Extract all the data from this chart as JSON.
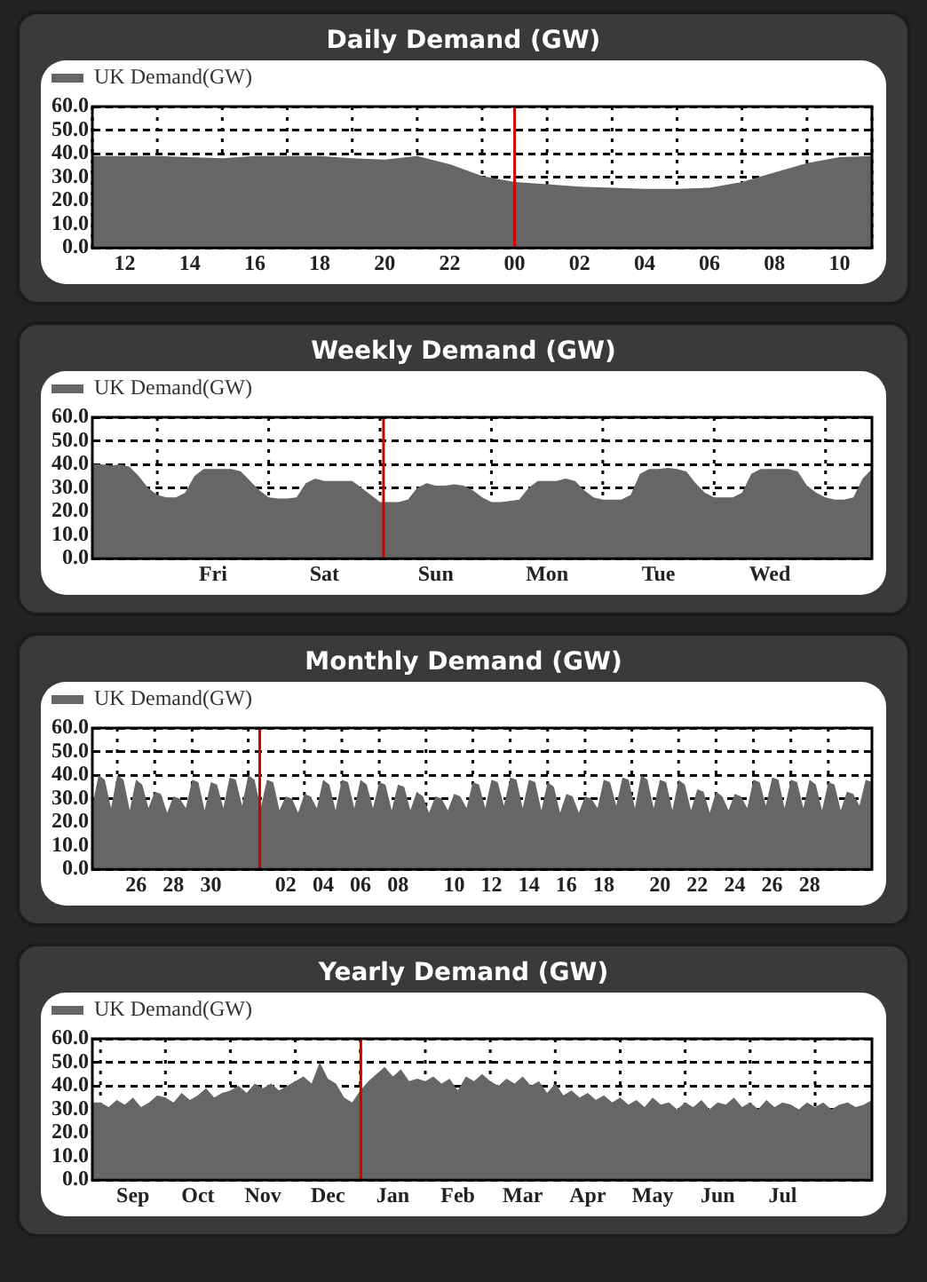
{
  "chart_data": [
    {
      "type": "area",
      "title": "Daily Demand (GW)",
      "legend": "top left",
      "grid": true,
      "categories": [
        null,
        "12",
        null,
        "14",
        null,
        "16",
        null,
        "18",
        null,
        "20",
        null,
        "22",
        null,
        "00",
        null,
        "02",
        null,
        "04",
        null,
        "06",
        null,
        "08",
        null,
        "10",
        null
      ],
      "series": [
        {
          "name": "UK Demand(GW)",
          "color": "#666666",
          "values": [
            39,
            39,
            39,
            38.5,
            38,
            39,
            39,
            39,
            38,
            37.5,
            39,
            35.5,
            30.5,
            28,
            27,
            26,
            25.5,
            25,
            25,
            25.5,
            28,
            32,
            36,
            38.5,
            39
          ]
        }
      ],
      "ylim": [
        0,
        60
      ],
      "yticks": [
        {
          "value": 0,
          "label": "0.0"
        },
        {
          "value": 10,
          "label": "10.0"
        },
        {
          "value": 20,
          "label": "20.0"
        },
        {
          "value": 30,
          "label": "30.0"
        },
        {
          "value": 40,
          "label": "40.0"
        },
        {
          "value": 50,
          "label": "50.0"
        },
        {
          "value": 60,
          "label": "60.0"
        }
      ],
      "ref_lines": [
        {
          "axis": "x",
          "value": "00",
          "color": "#cc0000"
        }
      ]
    },
    {
      "type": "area",
      "title": "Weekly Demand (GW)",
      "legend": "top left",
      "grid": true,
      "categories": [
        null,
        null,
        null,
        null,
        null,
        null,
        null,
        null,
        null,
        null,
        null,
        null,
        null,
        "Fri",
        null,
        null,
        null,
        null,
        null,
        null,
        null,
        null,
        null,
        null,
        null,
        "Sat",
        null,
        null,
        null,
        null,
        null,
        null,
        null,
        null,
        null,
        null,
        null,
        "Sun",
        null,
        null,
        null,
        null,
        null,
        null,
        null,
        null,
        null,
        null,
        null,
        "Mon",
        null,
        null,
        null,
        null,
        null,
        null,
        null,
        null,
        null,
        null,
        null,
        "Tue",
        null,
        null,
        null,
        null,
        null,
        null,
        null,
        null,
        null,
        null,
        null,
        "Wed",
        null,
        null,
        null,
        null,
        null,
        null,
        null,
        null,
        null,
        null,
        null
      ],
      "series": [
        {
          "name": "UK Demand(GW)",
          "color": "#666666",
          "values": [
            40,
            40,
            39.5,
            40,
            39,
            35,
            30,
            27,
            26,
            26,
            28,
            35,
            38,
            38,
            38,
            38,
            37,
            33,
            29,
            26,
            25.5,
            25.5,
            26,
            32,
            34,
            33,
            33,
            33,
            33,
            30,
            27,
            24,
            24,
            24,
            25,
            30,
            32,
            31,
            31,
            31.5,
            31,
            29,
            26,
            24,
            24,
            24.5,
            25,
            30,
            33,
            33,
            33,
            34,
            33,
            29,
            26,
            25,
            25,
            25,
            27,
            36,
            38,
            38,
            38.5,
            38,
            37,
            32,
            28,
            26,
            26,
            26,
            28,
            36,
            38,
            38,
            38,
            38,
            37,
            31,
            28,
            26,
            25,
            25,
            26,
            34,
            38
          ]
        }
      ],
      "ylim": [
        0,
        60
      ],
      "yticks": [
        {
          "value": 0,
          "label": "0.0"
        },
        {
          "value": 10,
          "label": "10.0"
        },
        {
          "value": 20,
          "label": "20.0"
        },
        {
          "value": 30,
          "label": "30.0"
        },
        {
          "value": 40,
          "label": "40.0"
        },
        {
          "value": 50,
          "label": "50.0"
        },
        {
          "value": 60,
          "label": "60.0"
        }
      ]
    },
    {
      "type": "area",
      "title": "Monthly Demand (GW)",
      "legend": "top left",
      "grid": true,
      "categories": [
        null,
        null,
        null,
        null,
        null,
        null,
        null,
        "26",
        null,
        null,
        null,
        null,
        null,
        "28",
        null,
        null,
        null,
        null,
        null,
        "30",
        null,
        null,
        null,
        null,
        null,
        null,
        null,
        null,
        null,
        null,
        null,
        "02",
        null,
        null,
        null,
        null,
        null,
        "04",
        null,
        null,
        null,
        null,
        null,
        "06",
        null,
        null,
        null,
        null,
        null,
        "08",
        null,
        null,
        null,
        null,
        null,
        null,
        null,
        null,
        "10",
        null,
        null,
        null,
        null,
        null,
        "12",
        null,
        null,
        null,
        null,
        null,
        "14",
        null,
        null,
        null,
        null,
        null,
        "16",
        null,
        null,
        null,
        null,
        null,
        "18",
        null,
        null,
        null,
        null,
        null,
        null,
        null,
        null,
        "20",
        null,
        null,
        null,
        null,
        null,
        "22",
        null,
        null,
        null,
        null,
        null,
        "24",
        null,
        null,
        null,
        null,
        null,
        "26",
        null,
        null,
        null,
        null,
        null,
        "28",
        null,
        null,
        null,
        null,
        null,
        null,
        null,
        null,
        null,
        null
      ],
      "series": [
        {
          "name": "UK Demand(GW)",
          "color": "#666666",
          "values": [
            27,
            40,
            38,
            26,
            40,
            38,
            25,
            38,
            36,
            26,
            33,
            32,
            24,
            31,
            30,
            26,
            38,
            37,
            25,
            37,
            36,
            26,
            39,
            38,
            27,
            40,
            38,
            26,
            38,
            37,
            25,
            31,
            30,
            24,
            32,
            31,
            26,
            38,
            36,
            25,
            38,
            37,
            26,
            38,
            36,
            26,
            37,
            36,
            25,
            36,
            35,
            25,
            33,
            31,
            24,
            31,
            30,
            25,
            32,
            31,
            26,
            37,
            36,
            26,
            38,
            37,
            27,
            39,
            38,
            26,
            38,
            37,
            25,
            37,
            35,
            24,
            32,
            31,
            24,
            31,
            30,
            26,
            38,
            37,
            27,
            39,
            38,
            26,
            40,
            38,
            26,
            38,
            37,
            25,
            38,
            36,
            25,
            34,
            33,
            24,
            33,
            31,
            25,
            32,
            31,
            26,
            38,
            37,
            27,
            39,
            38,
            26,
            38,
            37,
            26,
            38,
            36,
            25,
            37,
            36,
            25,
            33,
            32,
            27,
            38,
            37
          ]
        }
      ],
      "ylim": [
        0,
        60
      ],
      "yticks": [
        {
          "value": 0,
          "label": "0.0"
        },
        {
          "value": 10,
          "label": "10.0"
        },
        {
          "value": 20,
          "label": "20.0"
        },
        {
          "value": 30,
          "label": "30.0"
        },
        {
          "value": 40,
          "label": "40.0"
        },
        {
          "value": 50,
          "label": "50.0"
        },
        {
          "value": 60,
          "label": "60.0"
        }
      ]
    },
    {
      "type": "area",
      "title": "Yearly Demand (GW)",
      "legend": "top left",
      "grid": true,
      "categories": [
        null,
        null,
        null,
        null,
        null,
        "Sep",
        null,
        null,
        null,
        null,
        null,
        null,
        null,
        "Oct",
        null,
        null,
        null,
        null,
        null,
        null,
        null,
        "Nov",
        null,
        null,
        null,
        null,
        null,
        null,
        null,
        "Dec",
        null,
        null,
        null,
        null,
        null,
        null,
        null,
        "Jan",
        null,
        null,
        null,
        null,
        null,
        null,
        null,
        "Feb",
        null,
        null,
        null,
        null,
        null,
        null,
        null,
        "Mar",
        null,
        null,
        null,
        null,
        null,
        null,
        null,
        "Apr",
        null,
        null,
        null,
        null,
        null,
        null,
        null,
        "May",
        null,
        null,
        null,
        null,
        null,
        null,
        null,
        "Jun",
        null,
        null,
        null,
        null,
        null,
        null,
        null,
        "Jul",
        null,
        null,
        null,
        null,
        null,
        null,
        null,
        null,
        null,
        null,
        null
      ],
      "series": [
        {
          "name": "UK Demand(GW)",
          "color": "#666666",
          "values": [
            33,
            33,
            31,
            34,
            32,
            35,
            31,
            33,
            36,
            35,
            33,
            37,
            34,
            36,
            39,
            35,
            37,
            38,
            40,
            37,
            41,
            39,
            41,
            38,
            40,
            42,
            44,
            41,
            50,
            43,
            41,
            35,
            33,
            38,
            42,
            45,
            48,
            44,
            47,
            42,
            43,
            42,
            44,
            41,
            43,
            38,
            44,
            42,
            45,
            42,
            40,
            43,
            41,
            44,
            40,
            42,
            37,
            41,
            36,
            38,
            35,
            37,
            34,
            36,
            33,
            35,
            32,
            34,
            31,
            35,
            32,
            33,
            30,
            33,
            31,
            34,
            30,
            33,
            32,
            35,
            31,
            33,
            30,
            34,
            31,
            33,
            32,
            30,
            33,
            31,
            33,
            30,
            32,
            33,
            31,
            32,
            34
          ]
        }
      ],
      "ylim": [
        0,
        60
      ],
      "yticks": [
        {
          "value": 0,
          "label": "0.0"
        },
        {
          "value": 10,
          "label": "10.0"
        },
        {
          "value": 20,
          "label": "20.0"
        },
        {
          "value": 30,
          "label": "30.0"
        },
        {
          "value": 40,
          "label": "40.0"
        },
        {
          "value": 50,
          "label": "50.0"
        },
        {
          "value": 60,
          "label": "60.0"
        }
      ]
    }
  ]
}
